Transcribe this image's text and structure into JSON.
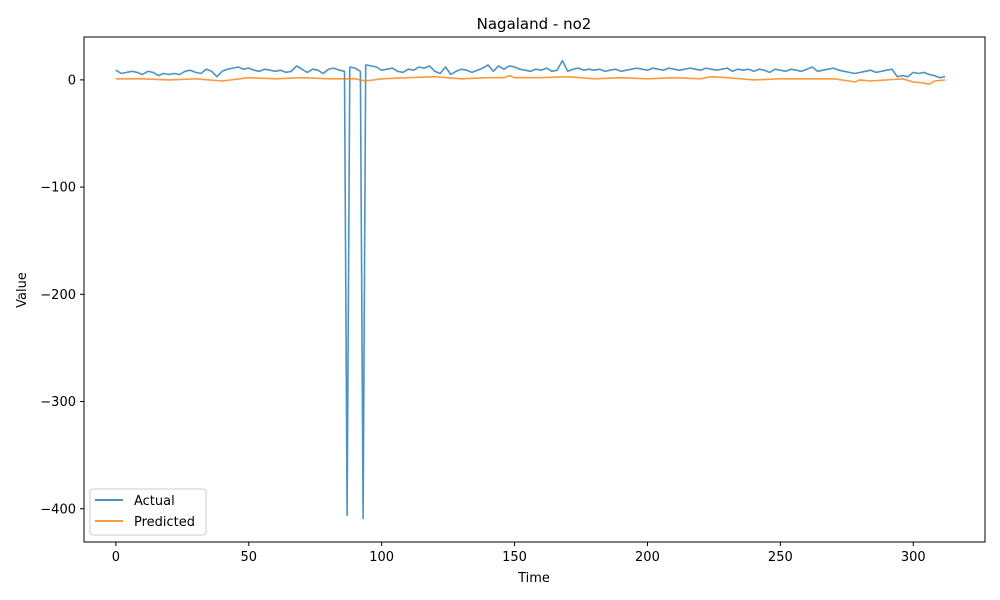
{
  "chart_data": {
    "type": "line",
    "title": "Nagaland - no2",
    "xlabel": "Time",
    "ylabel": "Value",
    "xlim": [
      -12,
      327
    ],
    "ylim": [
      -431,
      40
    ],
    "xticks": [
      0,
      50,
      100,
      150,
      200,
      250,
      300
    ],
    "yticks": [
      0,
      -100,
      -200,
      -300,
      -400
    ],
    "ytick_labels": [
      "0",
      "−100",
      "−200",
      "−300",
      "−400"
    ],
    "legend_position": "lower-left",
    "grid": false,
    "series": [
      {
        "name": "Actual",
        "color": "#1f77b4",
        "points": [
          [
            0,
            9
          ],
          [
            2,
            6
          ],
          [
            4,
            7
          ],
          [
            6,
            8
          ],
          [
            8,
            7
          ],
          [
            10,
            5
          ],
          [
            12,
            8
          ],
          [
            14,
            7
          ],
          [
            16,
            4
          ],
          [
            18,
            6
          ],
          [
            20,
            5
          ],
          [
            22,
            6
          ],
          [
            24,
            5
          ],
          [
            26,
            8
          ],
          [
            28,
            9
          ],
          [
            30,
            7
          ],
          [
            32,
            6
          ],
          [
            34,
            10
          ],
          [
            36,
            8
          ],
          [
            38,
            3
          ],
          [
            40,
            8
          ],
          [
            42,
            10
          ],
          [
            44,
            11
          ],
          [
            46,
            12
          ],
          [
            48,
            10
          ],
          [
            50,
            11
          ],
          [
            52,
            9
          ],
          [
            54,
            8
          ],
          [
            56,
            10
          ],
          [
            58,
            9
          ],
          [
            60,
            8
          ],
          [
            62,
            9
          ],
          [
            64,
            7
          ],
          [
            66,
            8
          ],
          [
            68,
            13
          ],
          [
            70,
            10
          ],
          [
            72,
            7
          ],
          [
            74,
            10
          ],
          [
            76,
            9
          ],
          [
            78,
            6
          ],
          [
            80,
            10
          ],
          [
            82,
            11
          ],
          [
            84,
            9
          ],
          [
            86,
            8
          ],
          [
            87,
            -406
          ],
          [
            88,
            12
          ],
          [
            90,
            11
          ],
          [
            92,
            8
          ],
          [
            93,
            -409
          ],
          [
            94,
            14
          ],
          [
            96,
            13
          ],
          [
            98,
            12
          ],
          [
            100,
            9
          ],
          [
            102,
            10
          ],
          [
            104,
            11
          ],
          [
            106,
            8
          ],
          [
            108,
            7
          ],
          [
            110,
            10
          ],
          [
            112,
            9
          ],
          [
            114,
            12
          ],
          [
            116,
            11
          ],
          [
            118,
            13
          ],
          [
            120,
            8
          ],
          [
            122,
            6
          ],
          [
            124,
            12
          ],
          [
            126,
            5
          ],
          [
            128,
            8
          ],
          [
            130,
            10
          ],
          [
            132,
            9
          ],
          [
            134,
            7
          ],
          [
            136,
            9
          ],
          [
            138,
            11
          ],
          [
            140,
            14
          ],
          [
            142,
            8
          ],
          [
            144,
            13
          ],
          [
            146,
            10
          ],
          [
            148,
            13
          ],
          [
            150,
            12
          ],
          [
            152,
            10
          ],
          [
            154,
            9
          ],
          [
            156,
            8
          ],
          [
            158,
            10
          ],
          [
            160,
            9
          ],
          [
            162,
            11
          ],
          [
            164,
            8
          ],
          [
            166,
            9
          ],
          [
            168,
            18
          ],
          [
            170,
            8
          ],
          [
            172,
            10
          ],
          [
            174,
            11
          ],
          [
            176,
            9
          ],
          [
            178,
            10
          ],
          [
            180,
            9
          ],
          [
            182,
            10
          ],
          [
            184,
            8
          ],
          [
            186,
            9
          ],
          [
            188,
            10
          ],
          [
            190,
            8
          ],
          [
            192,
            9
          ],
          [
            194,
            10
          ],
          [
            196,
            11
          ],
          [
            198,
            10
          ],
          [
            200,
            9
          ],
          [
            202,
            11
          ],
          [
            204,
            10
          ],
          [
            206,
            9
          ],
          [
            208,
            11
          ],
          [
            210,
            10
          ],
          [
            212,
            9
          ],
          [
            214,
            10
          ],
          [
            216,
            11
          ],
          [
            218,
            10
          ],
          [
            220,
            9
          ],
          [
            222,
            11
          ],
          [
            224,
            10
          ],
          [
            226,
            9
          ],
          [
            228,
            10
          ],
          [
            230,
            11
          ],
          [
            232,
            8
          ],
          [
            234,
            10
          ],
          [
            236,
            9
          ],
          [
            238,
            10
          ],
          [
            240,
            8
          ],
          [
            242,
            10
          ],
          [
            244,
            9
          ],
          [
            246,
            7
          ],
          [
            248,
            10
          ],
          [
            250,
            9
          ],
          [
            252,
            8
          ],
          [
            254,
            10
          ],
          [
            256,
            9
          ],
          [
            258,
            8
          ],
          [
            260,
            10
          ],
          [
            262,
            12
          ],
          [
            264,
            8
          ],
          [
            266,
            9
          ],
          [
            268,
            10
          ],
          [
            270,
            11
          ],
          [
            272,
            9
          ],
          [
            274,
            8
          ],
          [
            276,
            7
          ],
          [
            278,
            6
          ],
          [
            280,
            7
          ],
          [
            282,
            8
          ],
          [
            284,
            9
          ],
          [
            286,
            7
          ],
          [
            288,
            8
          ],
          [
            290,
            9
          ],
          [
            292,
            10
          ],
          [
            294,
            3
          ],
          [
            296,
            4
          ],
          [
            298,
            3
          ],
          [
            300,
            7
          ],
          [
            302,
            6
          ],
          [
            304,
            7
          ],
          [
            306,
            5
          ],
          [
            308,
            4
          ],
          [
            310,
            2
          ],
          [
            312,
            3
          ]
        ]
      },
      {
        "name": "Predicted",
        "color": "#ff7f0e",
        "points": [
          [
            0,
            1
          ],
          [
            10,
            1
          ],
          [
            20,
            0
          ],
          [
            30,
            1
          ],
          [
            40,
            -1
          ],
          [
            50,
            2
          ],
          [
            60,
            1
          ],
          [
            70,
            2
          ],
          [
            80,
            1
          ],
          [
            90,
            1
          ],
          [
            94,
            -1
          ],
          [
            100,
            1
          ],
          [
            110,
            2
          ],
          [
            120,
            3
          ],
          [
            130,
            1
          ],
          [
            140,
            2
          ],
          [
            146,
            2
          ],
          [
            148,
            4
          ],
          [
            150,
            2
          ],
          [
            160,
            2
          ],
          [
            170,
            3
          ],
          [
            180,
            1
          ],
          [
            190,
            2
          ],
          [
            200,
            1
          ],
          [
            210,
            2
          ],
          [
            220,
            1
          ],
          [
            224,
            3
          ],
          [
            230,
            2
          ],
          [
            240,
            0
          ],
          [
            250,
            1
          ],
          [
            260,
            1
          ],
          [
            270,
            1
          ],
          [
            276,
            -1
          ],
          [
            278,
            -2
          ],
          [
            280,
            0
          ],
          [
            284,
            -1
          ],
          [
            290,
            0
          ],
          [
            296,
            1
          ],
          [
            300,
            -2
          ],
          [
            304,
            -3
          ],
          [
            306,
            -4
          ],
          [
            308,
            -1
          ],
          [
            312,
            0
          ]
        ]
      }
    ]
  }
}
